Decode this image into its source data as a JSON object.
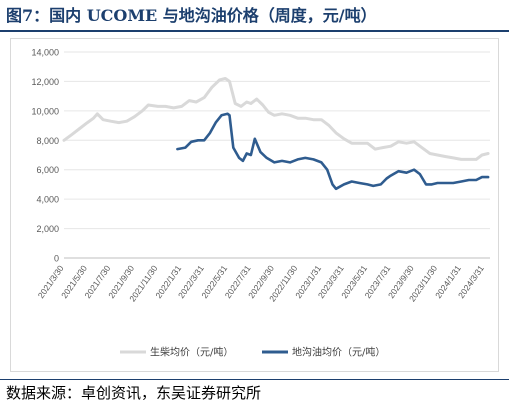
{
  "figure": {
    "title": "图7：国内 UCOME 与地沟油价格（周度，元/吨）",
    "source": "数据来源：卓创资讯，东吴证券研究所"
  },
  "colors": {
    "title": "#1c3f6e",
    "biodiesel": "#d9d9d9",
    "gutter_oil": "#2f5c8f",
    "grid": "#e6e6e6"
  },
  "chart_data": {
    "type": "line",
    "x_tick_labels": [
      "2021/3/30",
      "2021/5/30",
      "2021/7/30",
      "2021/9/30",
      "2021/11/30",
      "2022/1/31",
      "2022/3/31",
      "2022/5/31",
      "2022/7/31",
      "2022/9/30",
      "2022/11/30",
      "2023/1/31",
      "2023/3/31",
      "2023/5/31",
      "2023/7/31",
      "2023/9/30",
      "2023/11/30",
      "2024/1/31",
      "2024/3/31"
    ],
    "ylim": [
      0,
      14000
    ],
    "y_ticks": [
      0,
      2000,
      4000,
      6000,
      8000,
      10000,
      12000,
      14000
    ],
    "y_tick_labels": [
      "0",
      "2,000",
      "4,000",
      "6,000",
      "8,000",
      "10,000",
      "12,000",
      "14,000"
    ],
    "grid": "horizontal",
    "legend_position": "bottom",
    "series": [
      {
        "name": "生柴均价（元/吨）",
        "color": "#d9d9d9",
        "points": [
          [
            "2021/3/30",
            8000
          ],
          [
            "2021/4/20",
            8400
          ],
          [
            "2021/5/10",
            8800
          ],
          [
            "2021/5/30",
            9200
          ],
          [
            "2021/6/15",
            9500
          ],
          [
            "2021/6/25",
            9800
          ],
          [
            "2021/7/10",
            9400
          ],
          [
            "2021/7/30",
            9300
          ],
          [
            "2021/8/20",
            9200
          ],
          [
            "2021/9/10",
            9300
          ],
          [
            "2021/9/30",
            9600
          ],
          [
            "2021/10/20",
            10000
          ],
          [
            "2021/11/5",
            10400
          ],
          [
            "2021/11/30",
            10300
          ],
          [
            "2021/12/20",
            10300
          ],
          [
            "2022/1/10",
            10200
          ],
          [
            "2022/1/31",
            10300
          ],
          [
            "2022/2/20",
            10700
          ],
          [
            "2022/3/10",
            10600
          ],
          [
            "2022/3/31",
            10900
          ],
          [
            "2022/4/20",
            11600
          ],
          [
            "2022/5/10",
            12100
          ],
          [
            "2022/5/25",
            12200
          ],
          [
            "2022/6/5",
            12000
          ],
          [
            "2022/6/20",
            10500
          ],
          [
            "2022/7/5",
            10300
          ],
          [
            "2022/7/20",
            10600
          ],
          [
            "2022/7/31",
            10500
          ],
          [
            "2022/8/15",
            10800
          ],
          [
            "2022/8/31",
            10400
          ],
          [
            "2022/9/15",
            9900
          ],
          [
            "2022/9/30",
            9700
          ],
          [
            "2022/10/20",
            9800
          ],
          [
            "2022/11/10",
            9700
          ],
          [
            "2022/11/30",
            9500
          ],
          [
            "2022/12/20",
            9500
          ],
          [
            "2023/1/10",
            9400
          ],
          [
            "2023/1/31",
            9400
          ],
          [
            "2023/2/20",
            9000
          ],
          [
            "2023/3/10",
            8500
          ],
          [
            "2023/3/31",
            8100
          ],
          [
            "2023/4/20",
            7800
          ],
          [
            "2023/5/10",
            7800
          ],
          [
            "2023/5/31",
            7800
          ],
          [
            "2023/6/20",
            7400
          ],
          [
            "2023/7/10",
            7500
          ],
          [
            "2023/7/31",
            7600
          ],
          [
            "2023/8/20",
            7900
          ],
          [
            "2023/9/10",
            7800
          ],
          [
            "2023/9/30",
            7900
          ],
          [
            "2023/10/20",
            7500
          ],
          [
            "2023/11/10",
            7100
          ],
          [
            "2023/11/30",
            7000
          ],
          [
            "2023/12/20",
            6900
          ],
          [
            "2024/1/10",
            6800
          ],
          [
            "2024/1/31",
            6700
          ],
          [
            "2024/2/20",
            6700
          ],
          [
            "2024/3/10",
            6700
          ],
          [
            "2024/3/25",
            7000
          ],
          [
            "2024/4/10",
            7100
          ]
        ]
      },
      {
        "name": "地沟油均价（元/吨）",
        "color": "#2f5c8f",
        "points": [
          [
            "2022/1/20",
            7400
          ],
          [
            "2022/2/10",
            7500
          ],
          [
            "2022/2/25",
            7900
          ],
          [
            "2022/3/15",
            8000
          ],
          [
            "2022/3/31",
            8000
          ],
          [
            "2022/4/15",
            8500
          ],
          [
            "2022/4/30",
            9200
          ],
          [
            "2022/5/15",
            9700
          ],
          [
            "2022/5/31",
            9800
          ],
          [
            "2022/6/5",
            9700
          ],
          [
            "2022/6/15",
            7500
          ],
          [
            "2022/6/30",
            6800
          ],
          [
            "2022/7/10",
            6600
          ],
          [
            "2022/7/20",
            7100
          ],
          [
            "2022/7/31",
            7000
          ],
          [
            "2022/8/10",
            8100
          ],
          [
            "2022/8/25",
            7200
          ],
          [
            "2022/9/10",
            6800
          ],
          [
            "2022/9/30",
            6500
          ],
          [
            "2022/10/20",
            6600
          ],
          [
            "2022/11/10",
            6500
          ],
          [
            "2022/11/30",
            6700
          ],
          [
            "2022/12/20",
            6800
          ],
          [
            "2023/1/10",
            6700
          ],
          [
            "2023/1/31",
            6500
          ],
          [
            "2023/2/15",
            6000
          ],
          [
            "2023/3/1",
            5000
          ],
          [
            "2023/3/10",
            4700
          ],
          [
            "2023/3/31",
            5000
          ],
          [
            "2023/4/20",
            5200
          ],
          [
            "2023/5/10",
            5100
          ],
          [
            "2023/5/31",
            5000
          ],
          [
            "2023/6/15",
            4900
          ],
          [
            "2023/7/5",
            5000
          ],
          [
            "2023/7/20",
            5400
          ],
          [
            "2023/7/31",
            5600
          ],
          [
            "2023/8/20",
            5900
          ],
          [
            "2023/9/10",
            5800
          ],
          [
            "2023/9/30",
            6000
          ],
          [
            "2023/10/15",
            5700
          ],
          [
            "2023/10/31",
            5000
          ],
          [
            "2023/11/15",
            5000
          ],
          [
            "2023/11/30",
            5100
          ],
          [
            "2023/12/20",
            5100
          ],
          [
            "2024/1/10",
            5100
          ],
          [
            "2024/1/31",
            5200
          ],
          [
            "2024/2/20",
            5300
          ],
          [
            "2024/3/10",
            5300
          ],
          [
            "2024/3/25",
            5500
          ],
          [
            "2024/4/10",
            5500
          ]
        ]
      }
    ]
  }
}
